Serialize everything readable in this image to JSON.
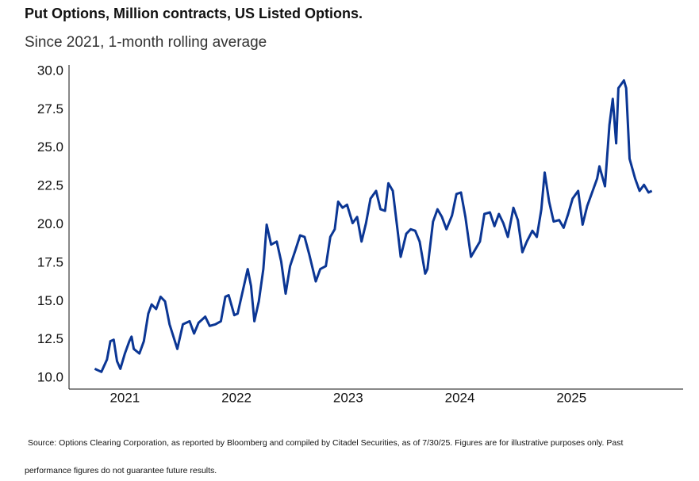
{
  "chart_data": {
    "type": "line",
    "title": "Put Options, Million contracts, US Listed Options.",
    "subtitle": "Since 2021, 1-month rolling average",
    "source": [
      "Source: Options Clearing Corporation, as reported by Bloomberg and compiled by Citadel Securities, as of 7/30/25. Figures are for illustrative purposes only. Past",
      "performance figures do not guarantee future results."
    ],
    "x": [
      2020.73,
      2020.79,
      2020.84,
      2020.87,
      2020.9,
      2020.93,
      2020.96,
      2021.0,
      2021.04,
      2021.06,
      2021.08,
      2021.13,
      2021.17,
      2021.21,
      2021.24,
      2021.28,
      2021.32,
      2021.36,
      2021.4,
      2021.47,
      2021.52,
      2021.58,
      2021.62,
      2021.66,
      2021.72,
      2021.76,
      2021.81,
      2021.86,
      2021.9,
      2021.93,
      2021.98,
      2022.01,
      2022.06,
      2022.1,
      2022.13,
      2022.16,
      2022.2,
      2022.24,
      2022.27,
      2022.31,
      2022.36,
      2022.4,
      2022.44,
      2022.48,
      2022.53,
      2022.57,
      2022.61,
      2022.65,
      2022.71,
      2022.75,
      2022.8,
      2022.84,
      2022.88,
      2022.91,
      2022.95,
      2022.99,
      2023.04,
      2023.08,
      2023.12,
      2023.16,
      2023.2,
      2023.25,
      2023.29,
      2023.33,
      2023.36,
      2023.4,
      2023.45,
      2023.47,
      2023.52,
      2023.56,
      2023.6,
      2023.64,
      2023.69,
      2023.71,
      2023.76,
      2023.8,
      2023.84,
      2023.88,
      2023.93,
      2023.97,
      2024.01,
      2024.05,
      2024.1,
      2024.14,
      2024.18,
      2024.22,
      2024.27,
      2024.31,
      2024.35,
      2024.39,
      2024.43,
      2024.48,
      2024.52,
      2024.56,
      2024.6,
      2024.65,
      2024.69,
      2024.73,
      2024.76,
      2024.8,
      2024.84,
      2024.89,
      2024.93,
      2024.97,
      2025.01,
      2025.06,
      2025.1,
      2025.14,
      2025.18,
      2025.23,
      2025.25,
      2025.3,
      2025.34,
      2025.37,
      2025.4,
      2025.42,
      2025.47,
      2025.49,
      2025.52,
      2025.57,
      2025.61,
      2025.65,
      2025.69,
      2025.72
    ],
    "series": [
      {
        "color": "#0b3694",
        "values": [
          10.6,
          10.4,
          11.2,
          12.4,
          12.5,
          11.1,
          10.6,
          11.6,
          12.4,
          12.7,
          11.9,
          11.6,
          12.4,
          14.2,
          14.8,
          14.5,
          15.3,
          15.0,
          13.5,
          11.9,
          13.5,
          13.7,
          12.9,
          13.6,
          14.0,
          13.4,
          13.5,
          13.7,
          15.3,
          15.4,
          14.1,
          14.2,
          15.8,
          17.1,
          16.0,
          13.7,
          15.0,
          17.1,
          20.0,
          18.7,
          18.9,
          17.6,
          15.5,
          17.3,
          18.4,
          19.3,
          19.2,
          18.1,
          16.3,
          17.1,
          17.3,
          19.2,
          19.7,
          21.5,
          21.1,
          21.3,
          20.1,
          20.5,
          18.9,
          20.1,
          21.7,
          22.2,
          21.0,
          20.9,
          22.7,
          22.2,
          19.2,
          17.9,
          19.4,
          19.7,
          19.6,
          18.9,
          16.8,
          17.1,
          20.2,
          21.0,
          20.5,
          19.7,
          20.6,
          22.0,
          22.1,
          20.5,
          17.9,
          18.4,
          18.9,
          20.7,
          20.8,
          19.9,
          20.7,
          20.1,
          19.2,
          21.1,
          20.3,
          18.2,
          18.9,
          19.6,
          19.2,
          21.0,
          23.4,
          21.5,
          20.2,
          20.3,
          19.8,
          20.7,
          21.7,
          22.2,
          20.0,
          21.2,
          22.0,
          23.0,
          23.8,
          22.5,
          26.5,
          28.2,
          25.3,
          28.9,
          29.4,
          28.9,
          24.3,
          23.0,
          22.2,
          22.6,
          22.1,
          22.2
        ]
      }
    ],
    "xlim": [
      2020.5,
      2026
    ],
    "xticks": [
      2021,
      2022,
      2023,
      2024,
      2025
    ],
    "ylim": [
      9.28,
      30.41
    ],
    "yticks": [
      {
        "value": 10,
        "label": "10.0"
      },
      12.5,
      {
        "value": 15,
        "label": "15.0"
      },
      17.5,
      {
        "value": 20,
        "label": "20.0"
      },
      22.5,
      {
        "value": 25,
        "label": "25.0"
      },
      27.5,
      {
        "value": 30,
        "label": "30.0"
      }
    ],
    "grid": false
  }
}
